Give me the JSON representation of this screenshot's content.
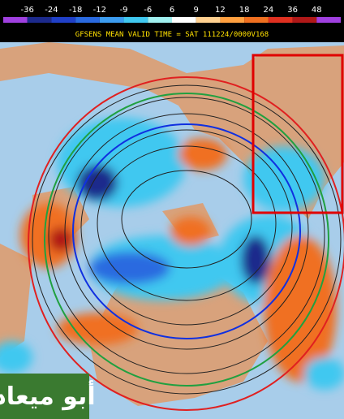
{
  "colorbar": {
    "labels": [
      -36,
      -24,
      -18,
      -12,
      -9,
      -6,
      6,
      9,
      12,
      18,
      24,
      36,
      48
    ],
    "colors": [
      "#a040e0",
      "#1c2a8c",
      "#2040c8",
      "#2a6ae0",
      "#3c9cf0",
      "#40c8f0",
      "#a0f0f0",
      "#ffffff",
      "#ffd090",
      "#ffa040",
      "#f07020",
      "#e03020",
      "#b01818",
      "#a040e0"
    ]
  },
  "title": "GFSENS MEAN VALID TIME = SAT 111224/0000V168",
  "watermark": "أبو ميعاد"
}
